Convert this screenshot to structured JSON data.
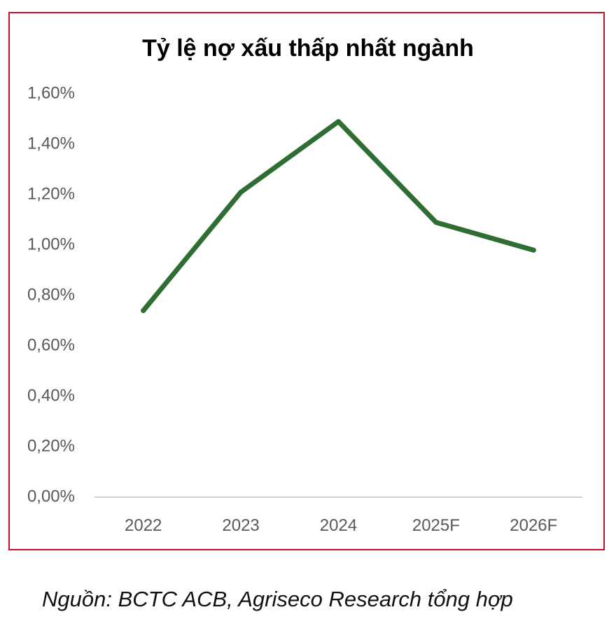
{
  "chart_data": {
    "type": "line",
    "title": "Tỷ lệ nợ xấu thấp nhất ngành",
    "xlabel": "",
    "ylabel": "",
    "categories": [
      "2022",
      "2023",
      "2024",
      "2025F",
      "2026F"
    ],
    "series": [
      {
        "values": [
          0.74,
          1.21,
          1.49,
          1.09,
          0.98
        ]
      }
    ],
    "ylim": [
      0,
      1.6
    ],
    "yticks": [
      0,
      0.2,
      0.4,
      0.6,
      0.8,
      1.0,
      1.2,
      1.4,
      1.6
    ],
    "ytick_labels": [
      "0,00%",
      "0,20%",
      "0,40%",
      "0,60%",
      "0,80%",
      "1,00%",
      "1,20%",
      "1,40%",
      "1,60%"
    ],
    "grid": false,
    "legend": "none",
    "colors": {
      "line": "#2e6e32",
      "frame": "#c8102e",
      "axis": "#d0d0d0",
      "tick_text": "#595959",
      "title_text": "#000000"
    }
  },
  "source": "Nguồn: BCTC ACB, Agriseco Research tổng hợp"
}
